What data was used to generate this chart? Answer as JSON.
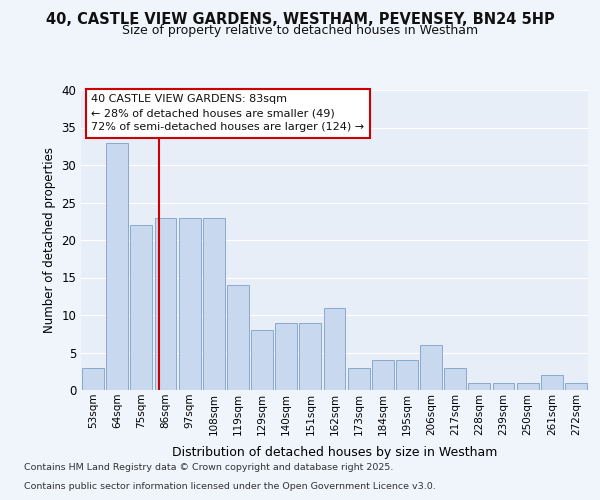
{
  "title_line1": "40, CASTLE VIEW GARDENS, WESTHAM, PEVENSEY, BN24 5HP",
  "title_line2": "Size of property relative to detached houses in Westham",
  "xlabel": "Distribution of detached houses by size in Westham",
  "ylabel": "Number of detached properties",
  "categories": [
    "53sqm",
    "64sqm",
    "75sqm",
    "86sqm",
    "97sqm",
    "108sqm",
    "119sqm",
    "129sqm",
    "140sqm",
    "151sqm",
    "162sqm",
    "173sqm",
    "184sqm",
    "195sqm",
    "206sqm",
    "217sqm",
    "228sqm",
    "239sqm",
    "250sqm",
    "261sqm",
    "272sqm"
  ],
  "values": [
    3,
    33,
    22,
    23,
    23,
    23,
    14,
    8,
    9,
    9,
    11,
    3,
    4,
    4,
    6,
    3,
    1,
    1,
    1,
    2,
    1
  ],
  "bar_color": "#c8d8ee",
  "bar_edge_color": "#88aacc",
  "annotation_title": "40 CASTLE VIEW GARDENS: 83sqm",
  "annotation_line2": "← 28% of detached houses are smaller (49)",
  "annotation_line3": "72% of semi-detached houses are larger (124) →",
  "annotation_box_color": "#ffffff",
  "annotation_edge_color": "#cc0000",
  "red_line_color": "#cc0000",
  "ylim": [
    0,
    40
  ],
  "yticks": [
    0,
    5,
    10,
    15,
    20,
    25,
    30,
    35,
    40
  ],
  "bg_color": "#e8eef8",
  "grid_color": "#ffffff",
  "fig_bg_color": "#f0f4fb",
  "footer_line1": "Contains HM Land Registry data © Crown copyright and database right 2025.",
  "footer_line2": "Contains public sector information licensed under the Open Government Licence v3.0."
}
